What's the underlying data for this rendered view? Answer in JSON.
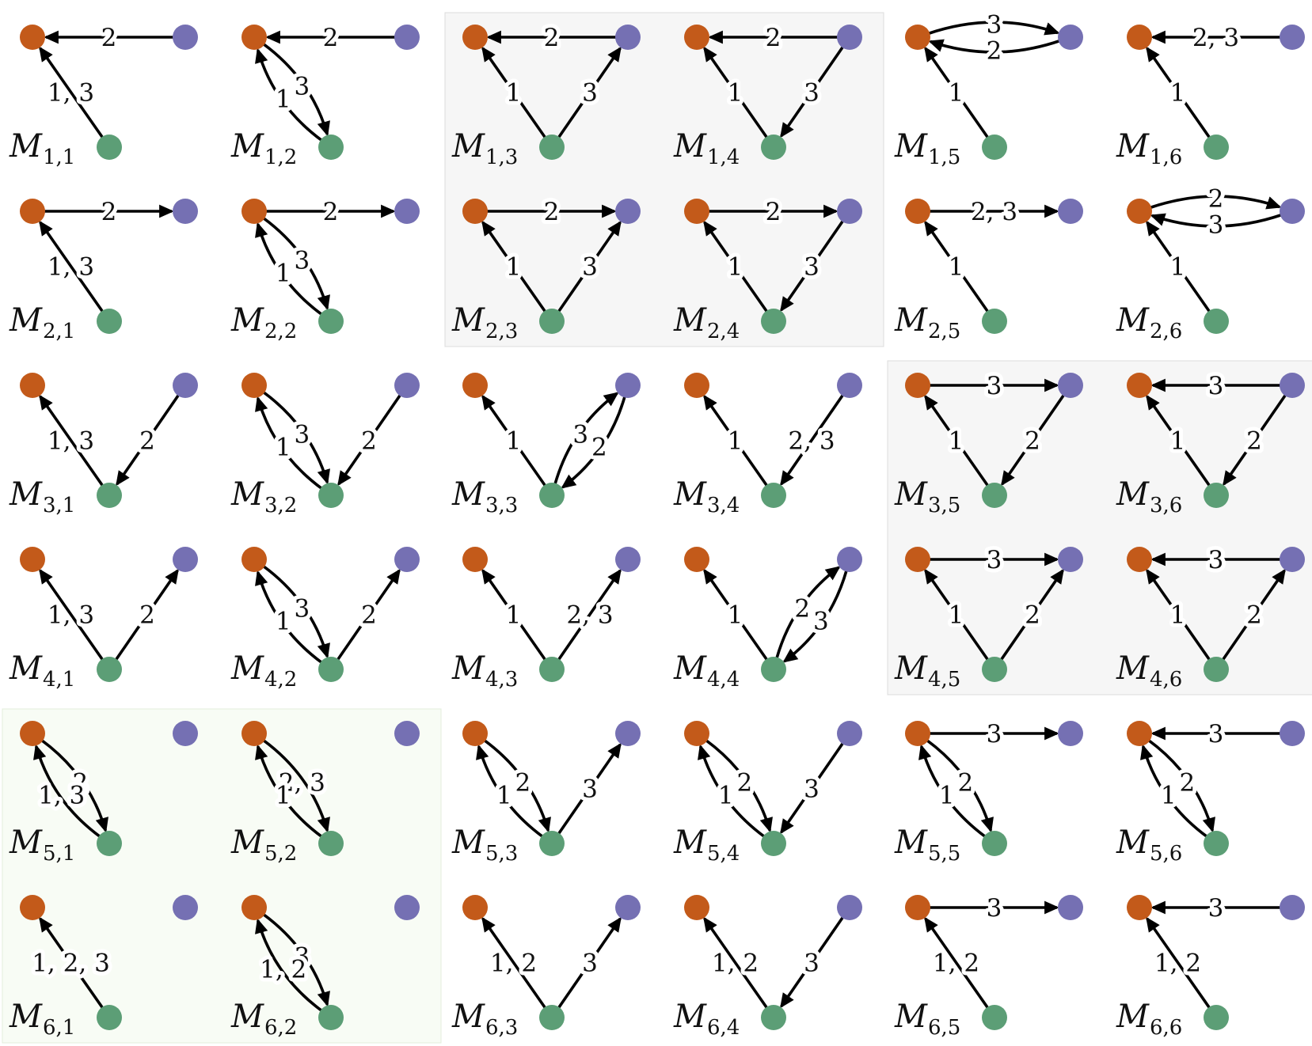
{
  "colors": {
    "node_a": "#c35a1a",
    "node_b": "#7570b3",
    "node_c": "#5c9e76",
    "edge": "#000000",
    "highlight_gray": "#f6f6f6",
    "highlight_green": "#f8fcf5"
  },
  "highlight_regions": [
    {
      "rows": [
        1,
        2
      ],
      "cols": [
        3,
        4
      ],
      "color": "gray"
    },
    {
      "rows": [
        3,
        4
      ],
      "cols": [
        5,
        6
      ],
      "color": "gray"
    },
    {
      "rows": [
        5,
        6
      ],
      "cols": [
        1,
        2
      ],
      "color": "green"
    }
  ],
  "panels": [
    {
      "row": 1,
      "col": 1,
      "name": "M",
      "sub": "1,1",
      "edges": [
        {
          "from": "B",
          "to": "A",
          "label": "2"
        },
        {
          "from": "C",
          "to": "A",
          "label": "1, 3"
        }
      ]
    },
    {
      "row": 1,
      "col": 2,
      "name": "M",
      "sub": "1,2",
      "edges": [
        {
          "from": "B",
          "to": "A",
          "label": "2"
        },
        {
          "from": "A",
          "to": "C",
          "label": "3",
          "bend": "left"
        },
        {
          "from": "C",
          "to": "A",
          "label": "1",
          "bend": "left"
        }
      ]
    },
    {
      "row": 1,
      "col": 3,
      "name": "M",
      "sub": "1,3",
      "edges": [
        {
          "from": "B",
          "to": "A",
          "label": "2"
        },
        {
          "from": "C",
          "to": "A",
          "label": "1"
        },
        {
          "from": "C",
          "to": "B",
          "label": "3"
        }
      ]
    },
    {
      "row": 1,
      "col": 4,
      "name": "M",
      "sub": "1,4",
      "edges": [
        {
          "from": "B",
          "to": "A",
          "label": "2"
        },
        {
          "from": "C",
          "to": "A",
          "label": "1"
        },
        {
          "from": "B",
          "to": "C",
          "label": "3"
        }
      ]
    },
    {
      "row": 1,
      "col": 5,
      "name": "M",
      "sub": "1,5",
      "edges": [
        {
          "from": "B",
          "to": "A",
          "label": "2",
          "bend": "left"
        },
        {
          "from": "A",
          "to": "B",
          "label": "3",
          "bend": "left"
        },
        {
          "from": "C",
          "to": "A",
          "label": "1"
        }
      ]
    },
    {
      "row": 1,
      "col": 6,
      "name": "M",
      "sub": "1,6",
      "edges": [
        {
          "from": "B",
          "to": "A",
          "label": "2, 3"
        },
        {
          "from": "C",
          "to": "A",
          "label": "1"
        }
      ]
    },
    {
      "row": 2,
      "col": 1,
      "name": "M",
      "sub": "2,1",
      "edges": [
        {
          "from": "A",
          "to": "B",
          "label": "2"
        },
        {
          "from": "C",
          "to": "A",
          "label": "1, 3"
        }
      ]
    },
    {
      "row": 2,
      "col": 2,
      "name": "M",
      "sub": "2,2",
      "edges": [
        {
          "from": "A",
          "to": "B",
          "label": "2"
        },
        {
          "from": "A",
          "to": "C",
          "label": "3",
          "bend": "left"
        },
        {
          "from": "C",
          "to": "A",
          "label": "1",
          "bend": "left"
        }
      ]
    },
    {
      "row": 2,
      "col": 3,
      "name": "M",
      "sub": "2,3",
      "edges": [
        {
          "from": "A",
          "to": "B",
          "label": "2"
        },
        {
          "from": "C",
          "to": "A",
          "label": "1"
        },
        {
          "from": "C",
          "to": "B",
          "label": "3"
        }
      ]
    },
    {
      "row": 2,
      "col": 4,
      "name": "M",
      "sub": "2,4",
      "edges": [
        {
          "from": "A",
          "to": "B",
          "label": "2"
        },
        {
          "from": "C",
          "to": "A",
          "label": "1"
        },
        {
          "from": "B",
          "to": "C",
          "label": "3"
        }
      ]
    },
    {
      "row": 2,
      "col": 5,
      "name": "M",
      "sub": "2,5",
      "edges": [
        {
          "from": "A",
          "to": "B",
          "label": "2, 3"
        },
        {
          "from": "C",
          "to": "A",
          "label": "1"
        }
      ]
    },
    {
      "row": 2,
      "col": 6,
      "name": "M",
      "sub": "2,6",
      "edges": [
        {
          "from": "B",
          "to": "A",
          "label": "3",
          "bend": "left"
        },
        {
          "from": "A",
          "to": "B",
          "label": "2",
          "bend": "left"
        },
        {
          "from": "C",
          "to": "A",
          "label": "1"
        }
      ]
    },
    {
      "row": 3,
      "col": 1,
      "name": "M",
      "sub": "3,1",
      "edges": [
        {
          "from": "C",
          "to": "A",
          "label": "1, 3"
        },
        {
          "from": "B",
          "to": "C",
          "label": "2"
        }
      ]
    },
    {
      "row": 3,
      "col": 2,
      "name": "M",
      "sub": "3,2",
      "edges": [
        {
          "from": "A",
          "to": "C",
          "label": "3",
          "bend": "left"
        },
        {
          "from": "C",
          "to": "A",
          "label": "1",
          "bend": "left"
        },
        {
          "from": "B",
          "to": "C",
          "label": "2"
        }
      ]
    },
    {
      "row": 3,
      "col": 3,
      "name": "M",
      "sub": "3,3",
      "edges": [
        {
          "from": "C",
          "to": "A",
          "label": "1"
        },
        {
          "from": "B",
          "to": "C",
          "label": "2",
          "bend": "left"
        },
        {
          "from": "C",
          "to": "B",
          "label": "3",
          "bend": "left"
        }
      ]
    },
    {
      "row": 3,
      "col": 4,
      "name": "M",
      "sub": "3,4",
      "edges": [
        {
          "from": "C",
          "to": "A",
          "label": "1"
        },
        {
          "from": "B",
          "to": "C",
          "label": "2, 3"
        }
      ]
    },
    {
      "row": 3,
      "col": 5,
      "name": "M",
      "sub": "3,5",
      "edges": [
        {
          "from": "A",
          "to": "B",
          "label": "3"
        },
        {
          "from": "C",
          "to": "A",
          "label": "1"
        },
        {
          "from": "B",
          "to": "C",
          "label": "2"
        }
      ]
    },
    {
      "row": 3,
      "col": 6,
      "name": "M",
      "sub": "3,6",
      "edges": [
        {
          "from": "B",
          "to": "A",
          "label": "3"
        },
        {
          "from": "C",
          "to": "A",
          "label": "1"
        },
        {
          "from": "B",
          "to": "C",
          "label": "2"
        }
      ]
    },
    {
      "row": 4,
      "col": 1,
      "name": "M",
      "sub": "4,1",
      "edges": [
        {
          "from": "C",
          "to": "A",
          "label": "1, 3"
        },
        {
          "from": "C",
          "to": "B",
          "label": "2"
        }
      ]
    },
    {
      "row": 4,
      "col": 2,
      "name": "M",
      "sub": "4,2",
      "edges": [
        {
          "from": "A",
          "to": "C",
          "label": "3",
          "bend": "left"
        },
        {
          "from": "C",
          "to": "A",
          "label": "1",
          "bend": "left"
        },
        {
          "from": "C",
          "to": "B",
          "label": "2"
        }
      ]
    },
    {
      "row": 4,
      "col": 3,
      "name": "M",
      "sub": "4,3",
      "edges": [
        {
          "from": "C",
          "to": "A",
          "label": "1"
        },
        {
          "from": "C",
          "to": "B",
          "label": "2, 3"
        }
      ]
    },
    {
      "row": 4,
      "col": 4,
      "name": "M",
      "sub": "4,4",
      "edges": [
        {
          "from": "C",
          "to": "A",
          "label": "1"
        },
        {
          "from": "B",
          "to": "C",
          "label": "3",
          "bend": "left"
        },
        {
          "from": "C",
          "to": "B",
          "label": "2",
          "bend": "left"
        }
      ]
    },
    {
      "row": 4,
      "col": 5,
      "name": "M",
      "sub": "4,5",
      "edges": [
        {
          "from": "A",
          "to": "B",
          "label": "3"
        },
        {
          "from": "C",
          "to": "A",
          "label": "1"
        },
        {
          "from": "C",
          "to": "B",
          "label": "2"
        }
      ]
    },
    {
      "row": 4,
      "col": 6,
      "name": "M",
      "sub": "4,6",
      "edges": [
        {
          "from": "B",
          "to": "A",
          "label": "3"
        },
        {
          "from": "C",
          "to": "A",
          "label": "1"
        },
        {
          "from": "C",
          "to": "B",
          "label": "2"
        }
      ]
    },
    {
      "row": 5,
      "col": 1,
      "name": "M",
      "sub": "5,1",
      "edges": [
        {
          "from": "A",
          "to": "C",
          "label": "2",
          "bend": "left"
        },
        {
          "from": "C",
          "to": "A",
          "label": "1, 3",
          "bend": "left"
        }
      ]
    },
    {
      "row": 5,
      "col": 2,
      "name": "M",
      "sub": "5,2",
      "edges": [
        {
          "from": "A",
          "to": "C",
          "label": "2, 3",
          "bend": "left"
        },
        {
          "from": "C",
          "to": "A",
          "label": "1",
          "bend": "left"
        }
      ]
    },
    {
      "row": 5,
      "col": 3,
      "name": "M",
      "sub": "5,3",
      "edges": [
        {
          "from": "A",
          "to": "C",
          "label": "2",
          "bend": "left"
        },
        {
          "from": "C",
          "to": "A",
          "label": "1",
          "bend": "left"
        },
        {
          "from": "C",
          "to": "B",
          "label": "3"
        }
      ]
    },
    {
      "row": 5,
      "col": 4,
      "name": "M",
      "sub": "5,4",
      "edges": [
        {
          "from": "A",
          "to": "C",
          "label": "2",
          "bend": "left"
        },
        {
          "from": "C",
          "to": "A",
          "label": "1",
          "bend": "left"
        },
        {
          "from": "B",
          "to": "C",
          "label": "3"
        }
      ]
    },
    {
      "row": 5,
      "col": 5,
      "name": "M",
      "sub": "5,5",
      "edges": [
        {
          "from": "A",
          "to": "B",
          "label": "3"
        },
        {
          "from": "A",
          "to": "C",
          "label": "2",
          "bend": "left"
        },
        {
          "from": "C",
          "to": "A",
          "label": "1",
          "bend": "left"
        }
      ]
    },
    {
      "row": 5,
      "col": 6,
      "name": "M",
      "sub": "5,6",
      "edges": [
        {
          "from": "B",
          "to": "A",
          "label": "3"
        },
        {
          "from": "A",
          "to": "C",
          "label": "2",
          "bend": "left"
        },
        {
          "from": "C",
          "to": "A",
          "label": "1",
          "bend": "left"
        }
      ]
    },
    {
      "row": 6,
      "col": 1,
      "name": "M",
      "sub": "6,1",
      "edges": [
        {
          "from": "C",
          "to": "A",
          "label": "1, 2, 3"
        }
      ]
    },
    {
      "row": 6,
      "col": 2,
      "name": "M",
      "sub": "6,2",
      "edges": [
        {
          "from": "A",
          "to": "C",
          "label": "3",
          "bend": "left"
        },
        {
          "from": "C",
          "to": "A",
          "label": "1, 2",
          "bend": "left"
        }
      ]
    },
    {
      "row": 6,
      "col": 3,
      "name": "M",
      "sub": "6,3",
      "edges": [
        {
          "from": "C",
          "to": "A",
          "label": "1, 2"
        },
        {
          "from": "C",
          "to": "B",
          "label": "3"
        }
      ]
    },
    {
      "row": 6,
      "col": 4,
      "name": "M",
      "sub": "6,4",
      "edges": [
        {
          "from": "C",
          "to": "A",
          "label": "1, 2"
        },
        {
          "from": "B",
          "to": "C",
          "label": "3"
        }
      ]
    },
    {
      "row": 6,
      "col": 5,
      "name": "M",
      "sub": "6,5",
      "edges": [
        {
          "from": "A",
          "to": "B",
          "label": "3"
        },
        {
          "from": "C",
          "to": "A",
          "label": "1, 2"
        }
      ]
    },
    {
      "row": 6,
      "col": 6,
      "name": "M",
      "sub": "6,6",
      "edges": [
        {
          "from": "B",
          "to": "A",
          "label": "3"
        },
        {
          "from": "C",
          "to": "A",
          "label": "1, 2"
        }
      ]
    }
  ]
}
